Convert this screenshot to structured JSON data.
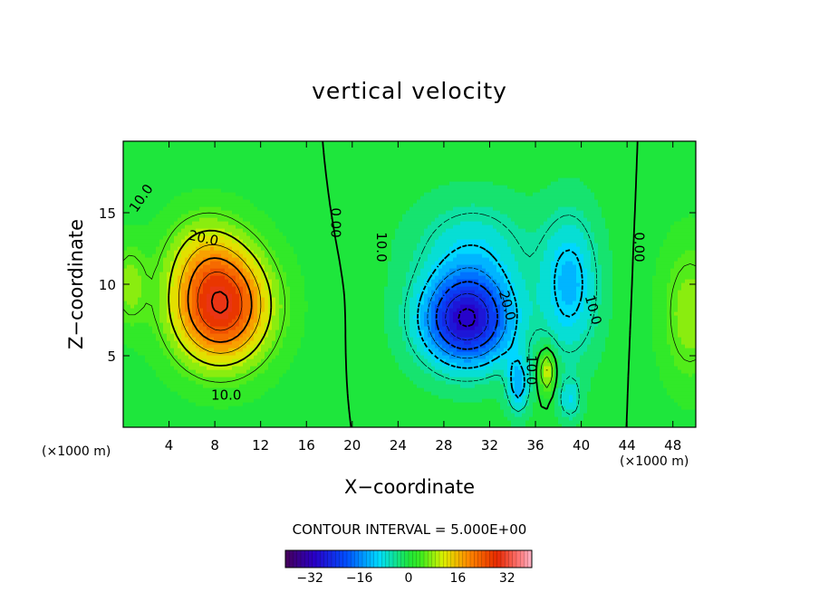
{
  "chart_data": {
    "type": "heatmap",
    "title": "vertical velocity",
    "xlabel": "X−coordinate",
    "ylabel": "Z−coordinate",
    "x_unit": "(×1000 m)",
    "xlim": [
      0,
      50
    ],
    "ylim": [
      0,
      20
    ],
    "x_ticks": [
      4,
      8,
      12,
      16,
      20,
      24,
      28,
      32,
      36,
      40,
      44,
      48
    ],
    "y_ticks": [
      5,
      10,
      15
    ],
    "contour_interval_text": "CONTOUR INTERVAL = 5.000E+00",
    "colorbar": {
      "range": [
        -40,
        40
      ],
      "ticks": [
        -32,
        -16,
        0,
        16,
        32
      ],
      "tick_labels": [
        "−32",
        "−16",
        "0",
        "16",
        "32"
      ]
    },
    "contour_labels": [
      {
        "text": "10.0",
        "x": 1.6,
        "z": 16.0,
        "rotate": -55
      },
      {
        "text": "20.0",
        "x": 7.0,
        "z": 13.2,
        "rotate": 12
      },
      {
        "text": "10.0",
        "x": 9.0,
        "z": 2.2,
        "rotate": 0
      },
      {
        "text": "0.00",
        "x": 18.5,
        "z": 14.3,
        "rotate": 90
      },
      {
        "text": "10.0",
        "x": 22.5,
        "z": 12.6,
        "rotate": 90
      },
      {
        "text": "20.0",
        "x": 33.5,
        "z": 8.5,
        "rotate": 75
      },
      {
        "text": "10.0",
        "x": 35.6,
        "z": 4.0,
        "rotate": 90
      },
      {
        "text": "10.0",
        "x": 41.0,
        "z": 8.2,
        "rotate": 75
      },
      {
        "text": "0.00",
        "x": 45.0,
        "z": 12.6,
        "rotate": 90
      }
    ],
    "features": [
      {
        "sign": 1,
        "x": 8.5,
        "z": 8.5,
        "sx": 4.2,
        "sz": 4.0,
        "amp": 30
      },
      {
        "sign": 1,
        "x": 7.0,
        "z": 12.5,
        "sx": 3.5,
        "sz": 3.0,
        "amp": 6
      },
      {
        "sign": -1,
        "x": 30.0,
        "z": 7.5,
        "sx": 4.0,
        "sz": 3.2,
        "amp": 30
      },
      {
        "sign": -1,
        "x": 30.5,
        "z": 12.5,
        "sx": 5.0,
        "sz": 3.5,
        "amp": 8
      },
      {
        "sign": -1,
        "x": 39.0,
        "z": 10.0,
        "sx": 2.5,
        "sz": 5.0,
        "amp": 12
      },
      {
        "sign": -1,
        "x": 34.5,
        "z": 3.0,
        "sx": 1.0,
        "sz": 2.0,
        "amp": 12
      },
      {
        "sign": 1,
        "x": 37.0,
        "z": 4.0,
        "sx": 0.7,
        "sz": 1.5,
        "amp": 12
      },
      {
        "sign": -1,
        "x": 39.0,
        "z": 2.0,
        "sx": 1.0,
        "sz": 1.5,
        "amp": 8
      },
      {
        "sign": 1,
        "x": 49.5,
        "z": 8.0,
        "sx": 2.5,
        "sz": 5.0,
        "amp": 8
      },
      {
        "sign": 1,
        "x": 0.5,
        "z": 10.0,
        "sx": 1.5,
        "sz": 3.0,
        "amp": 7
      }
    ]
  }
}
